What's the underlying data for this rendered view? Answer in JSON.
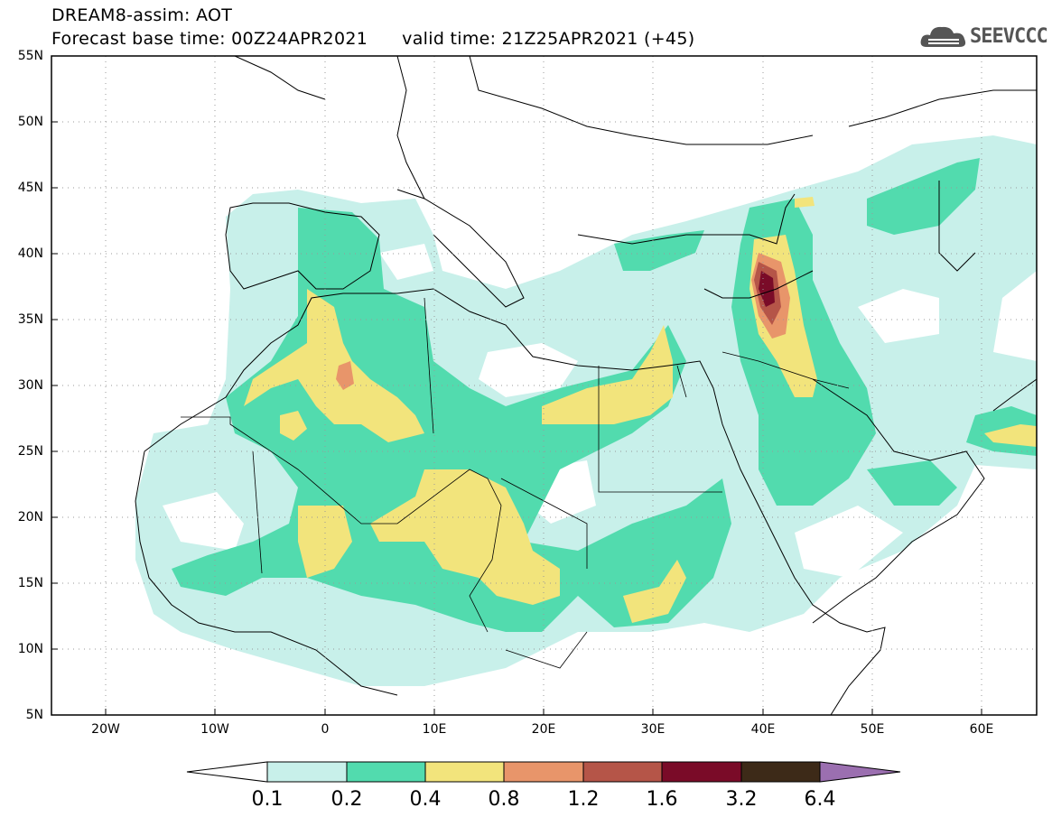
{
  "header": {
    "title": "DREAM8-assim: AOT",
    "base_time": "Forecast base time: 00Z24APR2021",
    "valid_time": "valid time: 21Z25APR2021 (+45)",
    "logo_text": "SEEVCCC"
  },
  "map": {
    "lat_labels": [
      "55N",
      "50N",
      "45N",
      "40N",
      "35N",
      "30N",
      "25N",
      "20N",
      "15N",
      "10N",
      "5N"
    ],
    "lon_labels": [
      "20W",
      "10W",
      "0",
      "10E",
      "20E",
      "30E",
      "40E",
      "50E",
      "60E"
    ],
    "lon_range": [
      -25,
      65
    ],
    "lat_range": [
      5,
      55
    ]
  },
  "colorbar": {
    "levels": [
      "0.1",
      "0.2",
      "0.4",
      "0.8",
      "1.2",
      "1.6",
      "3.2",
      "6.4"
    ],
    "colors": [
      "#c8f0ea",
      "#52dbae",
      "#f2e47c",
      "#e8956a",
      "#b55548",
      "#7a0b28",
      "#3d2a18",
      "#9b6fb0"
    ]
  }
}
